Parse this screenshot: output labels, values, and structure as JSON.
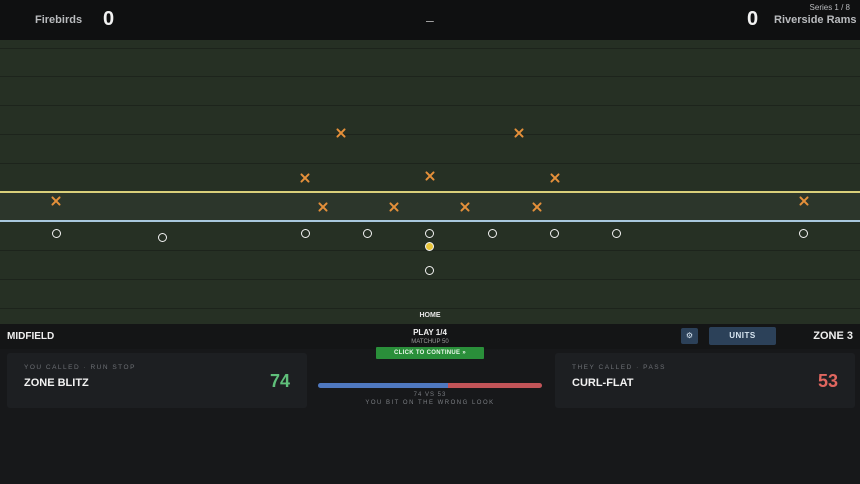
{
  "scoreboard": {
    "home_team": "Firebirds",
    "home_score": "0",
    "separator": "–",
    "away_score": "0",
    "away_team": "Riverside Rams",
    "series": "Series 1 / 8"
  },
  "field": {
    "home_label": "HOME",
    "defense_marker": "x-mark",
    "offense_marker": "o-mark",
    "ball_marker": "ball-carrier"
  },
  "status": {
    "field_position": "MIDFIELD",
    "play": "PLAY 1/4",
    "matchup": "MATCHUP 50",
    "continue_label": "CLICK TO CONTINUE »",
    "settings_icon": "gear-icon",
    "units_label": "UNITS",
    "zone": "ZONE 3"
  },
  "our_call": {
    "caption": "YOU CALLED · RUN STOP",
    "name": "ZONE BLITZ",
    "rating": "74"
  },
  "their_call": {
    "caption": "THEY CALLED · PASS",
    "name": "CURL-FLAT",
    "rating": "53"
  },
  "result": {
    "score_line": "74 VS 53",
    "message": "YOU BIT ON THE WRONG LOOK",
    "our_share": 0.58
  },
  "colors": {
    "field": "#263024",
    "defense": "#e5903a",
    "offense": "#f3f3f3",
    "line_of_scrimmage": "#d9cf7a",
    "scrimmage_line": "#a9c8de",
    "ours": "#5fbf7a",
    "theirs": "#e0665f",
    "continue": "#2a8f3a"
  }
}
